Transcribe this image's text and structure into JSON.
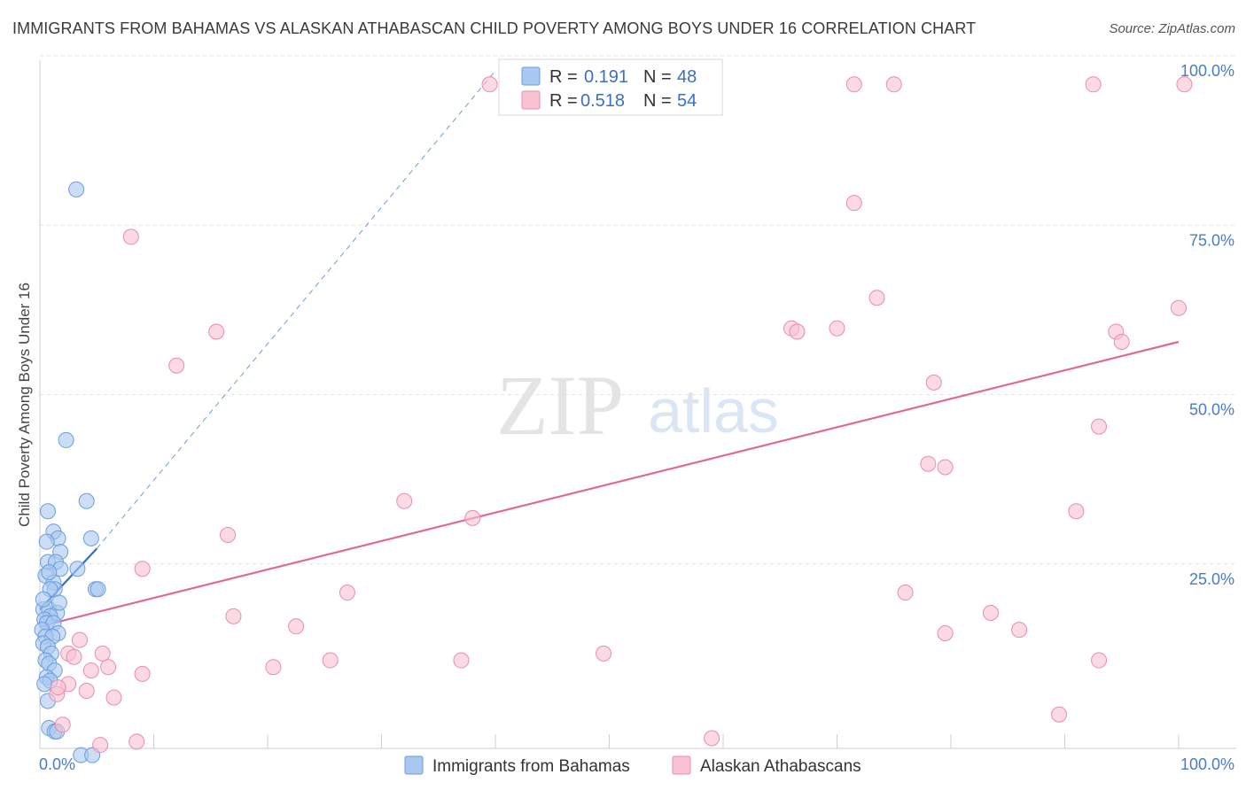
{
  "chart_data": {
    "type": "scatter",
    "title": "IMMIGRANTS FROM BAHAMAS VS ALASKAN ATHABASCAN CHILD POVERTY AMONG BOYS UNDER 16 CORRELATION CHART",
    "source": "Source: ZipAtlas.com",
    "ylabel": "Child Poverty Among Boys Under 16",
    "xlim": [
      0,
      100
    ],
    "ylim": [
      0,
      100
    ],
    "x_tick_labels": [
      "0.0%",
      "100.0%"
    ],
    "y_tick_labels": [
      "25.0%",
      "50.0%",
      "75.0%",
      "100.0%"
    ],
    "y_ticks": [
      25,
      50,
      75,
      100
    ],
    "watermark": {
      "zip": "ZIP",
      "atlas": "atlas"
    },
    "legend": [
      {
        "r_label": "R =",
        "r": "0.191",
        "n_label": "N =",
        "n": "48"
      },
      {
        "r_label": "R =",
        "r": "0.518",
        "n_label": "N =",
        "n": "54"
      }
    ],
    "series": [
      {
        "name": "Immigrants from Bahamas",
        "fill": "#a9c8ef",
        "stroke": "#6b9de0",
        "line_color": "#2f6fd0",
        "trend_solid": [
          [
            0,
            20.5
          ],
          [
            5,
            29.5
          ]
        ],
        "trend_dashed": [
          [
            5,
            29.5
          ],
          [
            40,
            100
          ]
        ],
        "points": [
          [
            3.2,
            82.5
          ],
          [
            2.3,
            45.5
          ],
          [
            4.1,
            36.5
          ],
          [
            0.7,
            35
          ],
          [
            1.2,
            32
          ],
          [
            1.6,
            31
          ],
          [
            4.5,
            31
          ],
          [
            0.6,
            30.5
          ],
          [
            1.8,
            29
          ],
          [
            0.7,
            27.5
          ],
          [
            1.4,
            27.5
          ],
          [
            1.8,
            26.5
          ],
          [
            3.3,
            26.5
          ],
          [
            0.5,
            25.5
          ],
          [
            1.2,
            24.5
          ],
          [
            1.3,
            23.5
          ],
          [
            0.9,
            23.5
          ],
          [
            4.9,
            23.5
          ],
          [
            5.1,
            23.5
          ],
          [
            0.3,
            20.5
          ],
          [
            0.8,
            20.5
          ],
          [
            1.5,
            20
          ],
          [
            0.9,
            19.5
          ],
          [
            0.4,
            19
          ],
          [
            0.6,
            18.5
          ],
          [
            1.2,
            18.5
          ],
          [
            0.2,
            17.5
          ],
          [
            1.6,
            17
          ],
          [
            0.5,
            16.5
          ],
          [
            1.1,
            16.5
          ],
          [
            0.3,
            15.5
          ],
          [
            0.7,
            15
          ],
          [
            1.0,
            14
          ],
          [
            0.5,
            13
          ],
          [
            0.8,
            12.5
          ],
          [
            1.3,
            11.5
          ],
          [
            0.6,
            10.5
          ],
          [
            0.9,
            10
          ],
          [
            0.4,
            9.5
          ],
          [
            0.7,
            7
          ],
          [
            0.8,
            3
          ],
          [
            1.3,
            2.5
          ],
          [
            1.5,
            2.5
          ],
          [
            3.6,
            -1
          ],
          [
            4.6,
            -1
          ],
          [
            0.3,
            22
          ],
          [
            1.7,
            21.5
          ],
          [
            0.8,
            26
          ]
        ]
      },
      {
        "name": "Alaskan Athabascans",
        "fill": "#f8c2d2",
        "stroke": "#ea8cab",
        "line_color": "#e0689a",
        "trend_solid": [
          [
            0,
            18
          ],
          [
            100,
            60
          ]
        ],
        "points": [
          [
            39.5,
            98
          ],
          [
            71.5,
            98
          ],
          [
            75,
            98
          ],
          [
            92.5,
            98
          ],
          [
            100.5,
            98
          ],
          [
            71.5,
            80.5
          ],
          [
            8,
            75.5
          ],
          [
            73.5,
            66.5
          ],
          [
            100,
            65
          ],
          [
            15.5,
            61.5
          ],
          [
            66,
            62
          ],
          [
            66.5,
            61.5
          ],
          [
            70,
            62
          ],
          [
            94.5,
            61.5
          ],
          [
            95,
            60
          ],
          [
            12,
            56.5
          ],
          [
            78.5,
            54
          ],
          [
            93,
            47.5
          ],
          [
            78,
            42
          ],
          [
            79.5,
            41.5
          ],
          [
            32,
            36.5
          ],
          [
            38,
            34
          ],
          [
            91,
            35
          ],
          [
            16.5,
            31.5
          ],
          [
            9,
            26.5
          ],
          [
            27,
            23
          ],
          [
            76,
            23
          ],
          [
            17,
            19.5
          ],
          [
            83.5,
            20
          ],
          [
            22.5,
            18
          ],
          [
            86,
            17.5
          ],
          [
            79.5,
            17
          ],
          [
            3.5,
            16
          ],
          [
            2.5,
            14
          ],
          [
            5.5,
            14
          ],
          [
            49.5,
            14
          ],
          [
            25.5,
            13
          ],
          [
            37,
            13
          ],
          [
            93,
            13
          ],
          [
            20.5,
            12
          ],
          [
            6,
            12
          ],
          [
            4.5,
            11.5
          ],
          [
            9,
            11
          ],
          [
            2.5,
            9.5
          ],
          [
            4.1,
            8.5
          ],
          [
            1.5,
            8
          ],
          [
            6.5,
            7.5
          ],
          [
            89.5,
            5
          ],
          [
            2,
            3.5
          ],
          [
            59,
            1.5
          ],
          [
            8.5,
            1
          ],
          [
            5.3,
            0.5
          ],
          [
            1.6,
            9
          ],
          [
            3.0,
            13.5
          ]
        ]
      }
    ]
  }
}
